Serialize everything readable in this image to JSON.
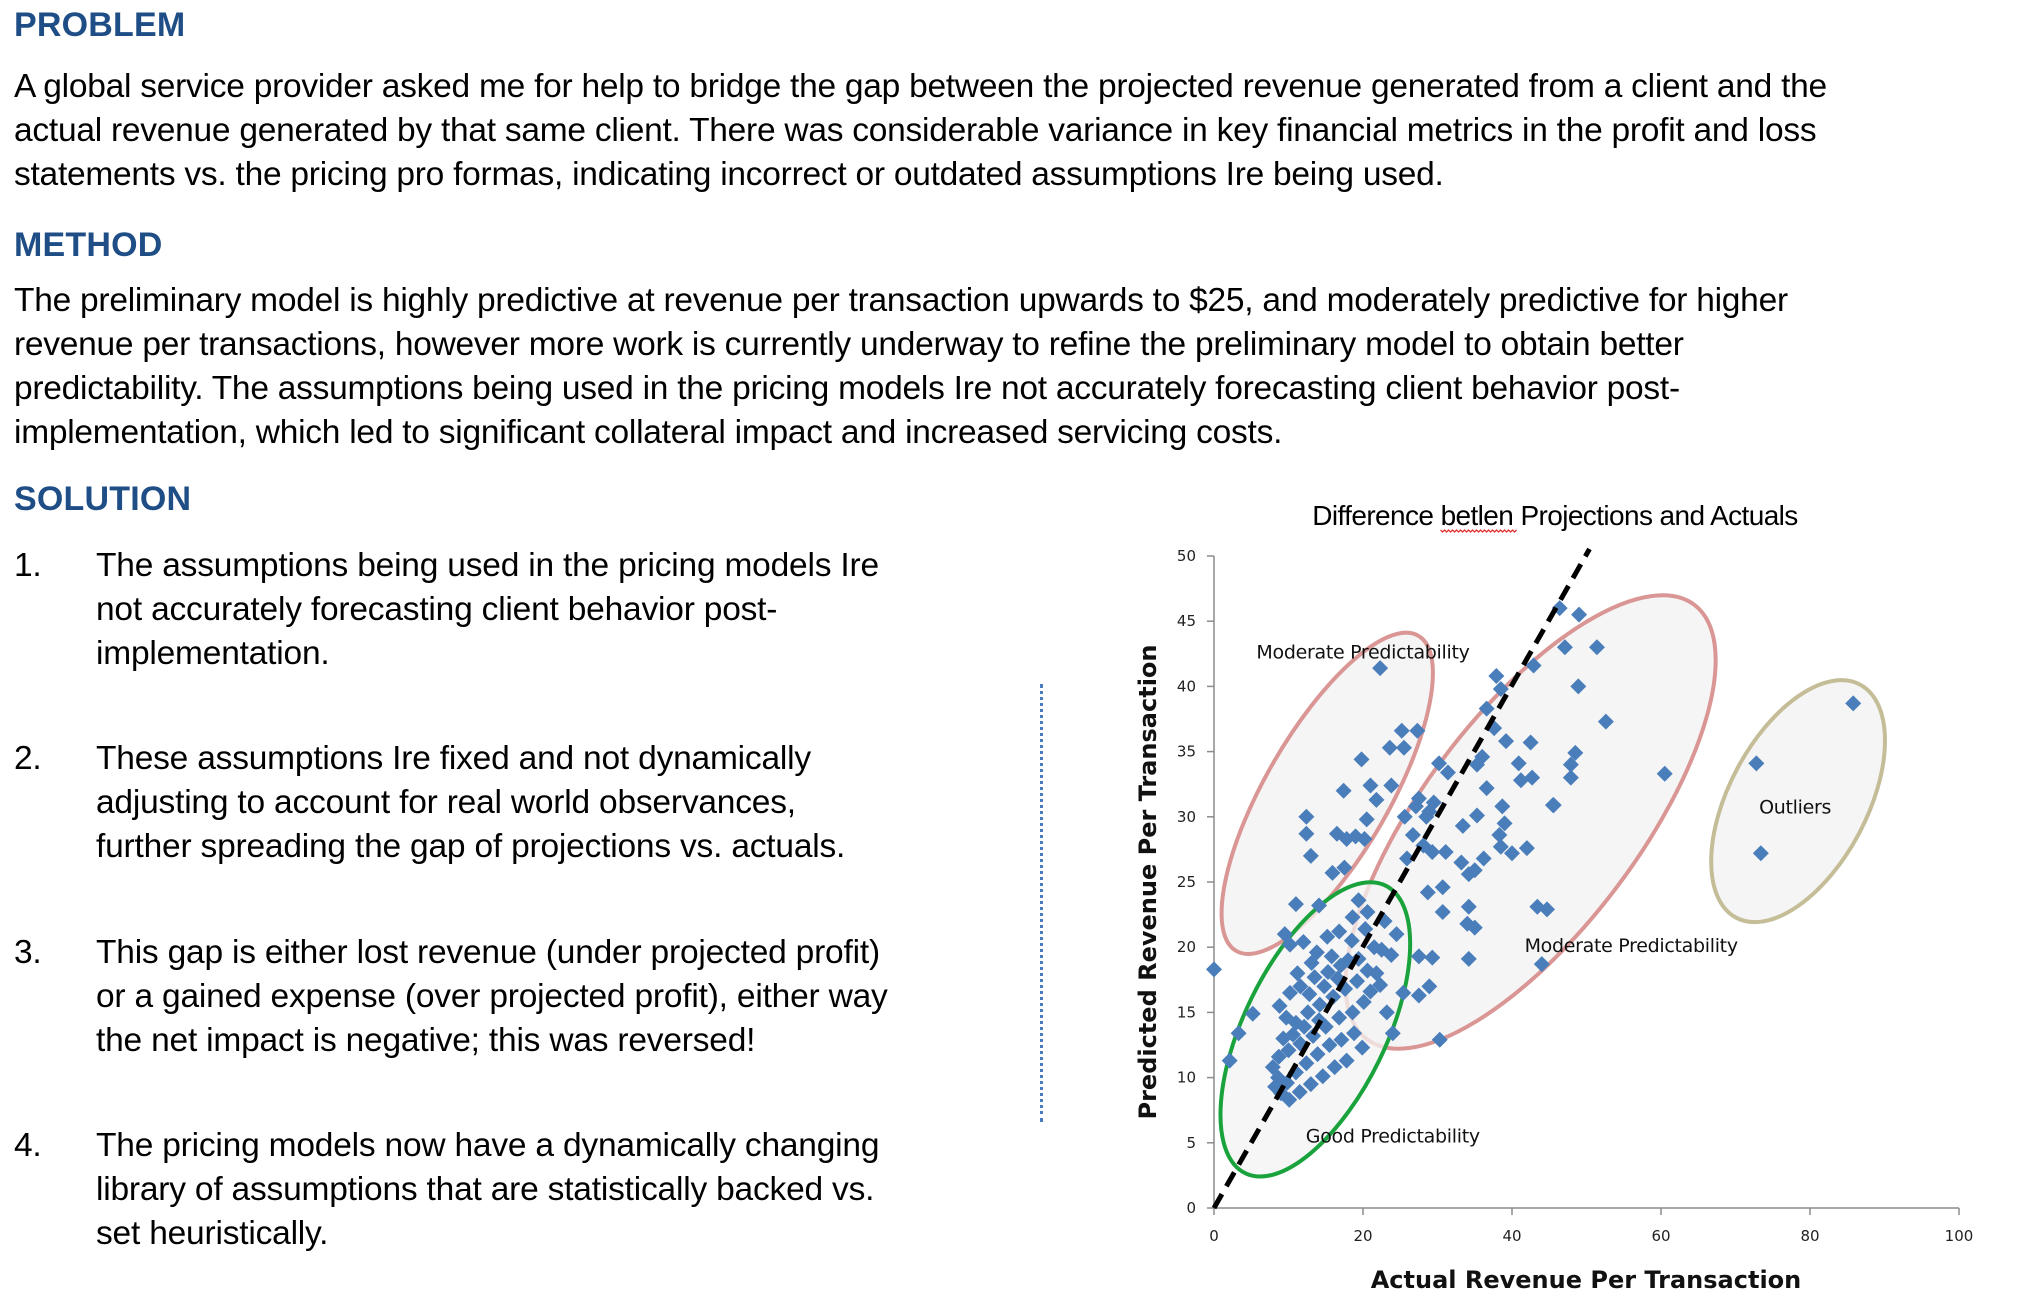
{
  "sections": {
    "problem": {
      "heading": "PROBLEM",
      "lines": [
        "A global service provider asked me for help to bridge the gap between the projected revenue generated from a client and the",
        "actual revenue generated by that same client.  There was considerable variance in key financial metrics in the profit and loss",
        "statements vs. the pricing pro formas, indicating incorrect or outdated assumptions Ire being used."
      ]
    },
    "method": {
      "heading": "METHOD",
      "lines": [
        "The preliminary model is highly predictive at revenue per transaction upwards to $25, and moderately predictive for higher",
        "revenue per transactions, however more work is currently underway to refine the preliminary model to obtain better",
        "predictability.  The assumptions being used in the pricing models Ire not accurately forecasting client behavior post-",
        "implementation, which led to significant collateral impact and increased servicing costs."
      ]
    },
    "solution": {
      "heading": "SOLUTION",
      "items": [
        {
          "number": "1.",
          "lines": [
            "The assumptions being used in the pricing models Ire",
            "not accurately forecasting client behavior post-",
            "implementation."
          ]
        },
        {
          "number": "2.",
          "lines": [
            "These assumptions Ire fixed and not dynamically",
            "adjusting to account for real world observances,",
            "further spreading the gap of projections vs. actuals."
          ]
        },
        {
          "number": "3.",
          "lines": [
            "This gap is either lost revenue (under projected profit)",
            "or a gained expense (over projected profit), either way",
            "the net impact is negative; this was reversed!"
          ]
        },
        {
          "number": "4.",
          "lines": [
            "The pricing models now have a dynamically changing",
            "library of assumptions that are statistically backed vs.",
            "set heuristically."
          ]
        }
      ]
    }
  },
  "colors": {
    "heading": "#1f4e86",
    "point": "#4a7ebb",
    "moderate_region": "#d99694",
    "good_region": "#1aa33c",
    "outlier_region": "#c4bd97",
    "region_fill": "#f4f3f3",
    "divider": "#4a7bbf"
  },
  "chart_data": {
    "type": "scatter",
    "title_parts": [
      "Difference ",
      "betlen",
      " Projections and Actuals"
    ],
    "xlabel": "Actual Revenue Per Transaction",
    "ylabel": "Predicted Revenue Per Transaction",
    "xlim": [
      0,
      100
    ],
    "ylim": [
      0,
      50
    ],
    "xticks": [
      0,
      20,
      40,
      60,
      80,
      100
    ],
    "yticks": [
      0,
      5,
      10,
      15,
      20,
      25,
      30,
      35,
      40,
      45,
      50
    ],
    "grid": false,
    "reference_line": {
      "label": "y = x",
      "style": "dashed",
      "from": [
        0,
        0
      ],
      "to": [
        50,
        50
      ]
    },
    "regions": [
      {
        "label": "Moderate Predictability",
        "kind": "moderate",
        "center": [
          15,
          32
        ],
        "label_at": [
          20,
          42.6
        ]
      },
      {
        "label": "Moderate Predictability",
        "kind": "moderate",
        "center": [
          43,
          30
        ],
        "label_at": [
          56,
          20.1
        ]
      },
      {
        "label": "Good Predictability",
        "kind": "good",
        "center": [
          13,
          13.5
        ],
        "label_at": [
          24,
          5.5
        ]
      },
      {
        "label": "Outliers",
        "kind": "outlier",
        "center": [
          78,
          31.5
        ],
        "label_at": [
          78,
          30.7
        ]
      }
    ],
    "series": [
      {
        "name": "Transactions",
        "points": [
          [
            0.0,
            18.3
          ],
          [
            5.2,
            14.9
          ],
          [
            3.3,
            13.4
          ],
          [
            2.1,
            11.3
          ],
          [
            22.3,
            41.4
          ],
          [
            19.8,
            34.4
          ],
          [
            23.6,
            35.3
          ],
          [
            25.2,
            36.6
          ],
          [
            17.4,
            32.0
          ],
          [
            21.0,
            32.4
          ],
          [
            12.4,
            30.0
          ],
          [
            12.4,
            28.7
          ],
          [
            16.5,
            28.7
          ],
          [
            17.8,
            28.3
          ],
          [
            19.0,
            28.5
          ],
          [
            20.2,
            28.3
          ],
          [
            20.5,
            29.8
          ],
          [
            21.8,
            31.3
          ],
          [
            13.0,
            27.0
          ],
          [
            15.9,
            25.7
          ],
          [
            17.5,
            26.1
          ],
          [
            14.1,
            23.2
          ],
          [
            18.6,
            22.3
          ],
          [
            11.0,
            23.3
          ],
          [
            36.6,
            38.3
          ],
          [
            37.6,
            36.8
          ],
          [
            27.3,
            36.6
          ],
          [
            39.2,
            35.8
          ],
          [
            25.5,
            35.3
          ],
          [
            36.0,
            34.6
          ],
          [
            30.2,
            34.1
          ],
          [
            35.3,
            34.0
          ],
          [
            31.4,
            33.4
          ],
          [
            23.8,
            32.4
          ],
          [
            36.6,
            32.2
          ],
          [
            27.5,
            31.4
          ],
          [
            29.5,
            31.1
          ],
          [
            38.7,
            30.8
          ],
          [
            45.5,
            30.9
          ],
          [
            27.1,
            30.8
          ],
          [
            28.9,
            30.4
          ],
          [
            25.6,
            30.0
          ],
          [
            35.3,
            30.1
          ],
          [
            28.5,
            30.0
          ],
          [
            33.4,
            29.3
          ],
          [
            26.7,
            28.6
          ],
          [
            38.3,
            28.6
          ],
          [
            28.1,
            27.8
          ],
          [
            29.3,
            27.3
          ],
          [
            31.1,
            27.3
          ],
          [
            38.5,
            27.7
          ],
          [
            40.0,
            27.2
          ],
          [
            42.0,
            27.6
          ],
          [
            36.2,
            26.8
          ],
          [
            25.9,
            26.8
          ],
          [
            33.2,
            26.5
          ],
          [
            35.0,
            25.9
          ],
          [
            34.2,
            25.6
          ],
          [
            28.7,
            24.2
          ],
          [
            30.7,
            24.6
          ],
          [
            34.2,
            23.1
          ],
          [
            43.4,
            23.1
          ],
          [
            44.7,
            22.9
          ],
          [
            30.7,
            22.7
          ],
          [
            34.0,
            21.8
          ],
          [
            35.0,
            21.5
          ],
          [
            27.5,
            19.3
          ],
          [
            29.3,
            19.2
          ],
          [
            34.2,
            19.1
          ],
          [
            44.0,
            18.7
          ],
          [
            28.9,
            17.0
          ],
          [
            25.4,
            16.5
          ],
          [
            27.5,
            16.3
          ],
          [
            23.2,
            15.0
          ],
          [
            24.0,
            13.4
          ],
          [
            30.3,
            12.9
          ],
          [
            46.4,
            46.0
          ],
          [
            49.0,
            45.5
          ],
          [
            47.1,
            43.0
          ],
          [
            51.4,
            43.0
          ],
          [
            42.9,
            41.6
          ],
          [
            37.9,
            40.8
          ],
          [
            48.9,
            40.0
          ],
          [
            38.5,
            39.8
          ],
          [
            52.6,
            37.3
          ],
          [
            42.5,
            35.7
          ],
          [
            48.5,
            34.9
          ],
          [
            40.9,
            34.1
          ],
          [
            47.9,
            34.0
          ],
          [
            42.7,
            33.0
          ],
          [
            47.9,
            33.0
          ],
          [
            60.5,
            33.3
          ],
          [
            45.6,
            30.9
          ],
          [
            39.0,
            29.5
          ],
          [
            41.2,
            32.8
          ],
          [
            85.8,
            38.7
          ],
          [
            72.8,
            34.1
          ],
          [
            73.4,
            27.2
          ],
          [
            9.5,
            21.0
          ],
          [
            10.2,
            20.2
          ],
          [
            12.0,
            20.4
          ],
          [
            13.8,
            19.6
          ],
          [
            15.2,
            20.8
          ],
          [
            16.8,
            21.2
          ],
          [
            18.5,
            20.5
          ],
          [
            20.3,
            21.4
          ],
          [
            21.5,
            20.0
          ],
          [
            19.4,
            19.1
          ],
          [
            17.0,
            18.6
          ],
          [
            15.3,
            18.1
          ],
          [
            13.5,
            17.7
          ],
          [
            11.6,
            17.0
          ],
          [
            10.2,
            16.5
          ],
          [
            8.8,
            15.5
          ],
          [
            9.7,
            14.6
          ],
          [
            11.0,
            14.2
          ],
          [
            12.6,
            15.0
          ],
          [
            14.2,
            15.6
          ],
          [
            16.0,
            16.2
          ],
          [
            17.6,
            16.8
          ],
          [
            19.2,
            17.4
          ],
          [
            20.6,
            18.2
          ],
          [
            21.8,
            18.0
          ],
          [
            22.5,
            19.8
          ],
          [
            20.1,
            15.8
          ],
          [
            18.6,
            15.0
          ],
          [
            16.8,
            14.6
          ],
          [
            15.0,
            13.9
          ],
          [
            13.3,
            13.2
          ],
          [
            11.6,
            12.6
          ],
          [
            10.0,
            12.1
          ],
          [
            8.7,
            11.6
          ],
          [
            7.9,
            10.8
          ],
          [
            8.6,
            10.0
          ],
          [
            9.8,
            9.6
          ],
          [
            11.0,
            10.4
          ],
          [
            12.4,
            11.1
          ],
          [
            13.9,
            11.8
          ],
          [
            15.5,
            12.5
          ],
          [
            17.1,
            12.9
          ],
          [
            18.8,
            13.4
          ],
          [
            19.9,
            12.3
          ],
          [
            17.8,
            11.3
          ],
          [
            16.2,
            10.8
          ],
          [
            14.6,
            10.1
          ],
          [
            13.0,
            9.5
          ],
          [
            11.5,
            8.9
          ],
          [
            10.1,
            8.3
          ],
          [
            9.0,
            8.8
          ],
          [
            8.2,
            9.3
          ],
          [
            12.1,
            13.9
          ],
          [
            14.1,
            14.4
          ],
          [
            10.6,
            13.3
          ],
          [
            9.3,
            13.0
          ],
          [
            12.8,
            16.4
          ],
          [
            14.8,
            17.0
          ],
          [
            16.6,
            17.6
          ],
          [
            18.0,
            19.0
          ],
          [
            11.2,
            18.0
          ],
          [
            13.1,
            18.8
          ],
          [
            15.8,
            19.3
          ],
          [
            21.0,
            16.6
          ],
          [
            22.3,
            17.1
          ],
          [
            23.8,
            19.4
          ],
          [
            24.5,
            21.0
          ],
          [
            22.9,
            22.0
          ],
          [
            20.6,
            22.7
          ],
          [
            19.4,
            23.6
          ]
        ]
      }
    ]
  }
}
